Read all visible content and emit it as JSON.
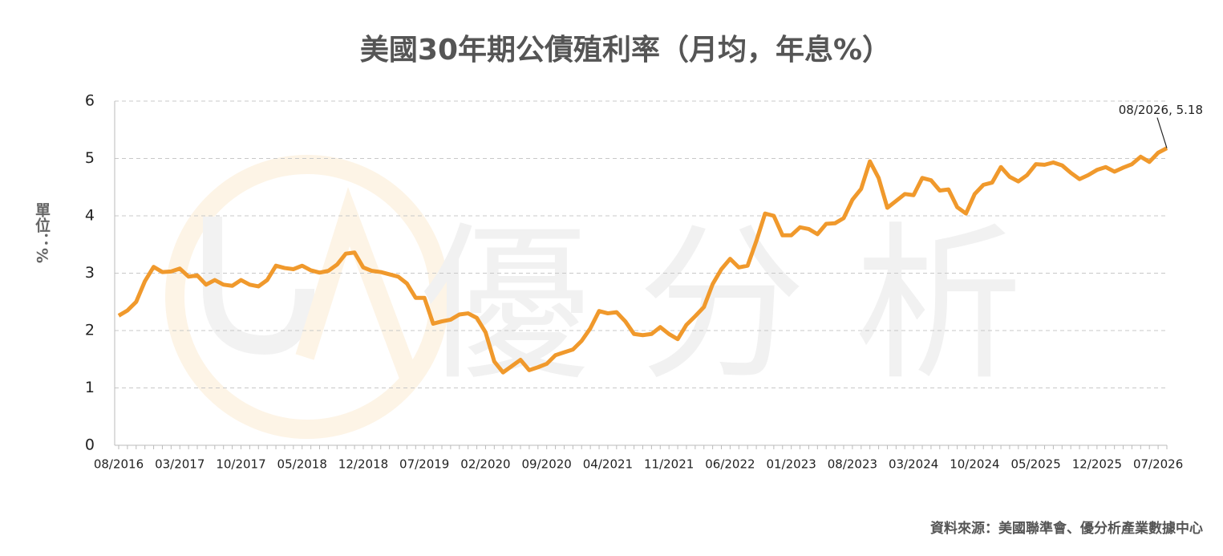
{
  "chart_data": {
    "type": "line",
    "title": "美國30年期公債殖利率（月均，年息%）",
    "ylabel": "單位：%",
    "source": "資料來源：美國聯準會、優分析產業數據中心",
    "watermark": "優分析",
    "categories": [
      "08/2016",
      null,
      null,
      null,
      null,
      null,
      null,
      "03/2017",
      null,
      null,
      null,
      null,
      null,
      null,
      "10/2017",
      null,
      null,
      null,
      null,
      null,
      null,
      "05/2018",
      null,
      null,
      null,
      null,
      null,
      null,
      "12/2018",
      null,
      null,
      null,
      null,
      null,
      null,
      "07/2019",
      null,
      null,
      null,
      null,
      null,
      null,
      "02/2020",
      null,
      null,
      null,
      null,
      null,
      null,
      "09/2020",
      null,
      null,
      null,
      null,
      null,
      null,
      "04/2021",
      null,
      null,
      null,
      null,
      null,
      null,
      "11/2021",
      null,
      null,
      null,
      null,
      null,
      null,
      "06/2022",
      null,
      null,
      null,
      null,
      null,
      null,
      "01/2023",
      null,
      null,
      null,
      null,
      null,
      null,
      "08/2023",
      null,
      null,
      null,
      null,
      null,
      null,
      "03/2024",
      null,
      null,
      null,
      null,
      null,
      null,
      "10/2024",
      null,
      null,
      null,
      null,
      null,
      null,
      "05/2025",
      null,
      null,
      null,
      null,
      null,
      null,
      "12/2025",
      null,
      null,
      null,
      null,
      null,
      null,
      "07/2026",
      null
    ],
    "values": [
      2.26,
      2.35,
      2.5,
      2.86,
      3.11,
      3.02,
      3.03,
      3.08,
      2.94,
      2.96,
      2.8,
      2.88,
      2.8,
      2.78,
      2.88,
      2.8,
      2.77,
      2.88,
      3.13,
      3.09,
      3.07,
      3.13,
      3.05,
      3.01,
      3.04,
      3.15,
      3.34,
      3.36,
      3.1,
      3.04,
      3.02,
      2.98,
      2.94,
      2.82,
      2.57,
      2.57,
      2.12,
      2.16,
      2.19,
      2.28,
      2.3,
      2.22,
      1.97,
      1.46,
      1.27,
      1.38,
      1.49,
      1.31,
      1.36,
      1.42,
      1.57,
      1.62,
      1.67,
      1.82,
      2.04,
      2.34,
      2.3,
      2.32,
      2.16,
      1.94,
      1.92,
      1.94,
      2.06,
      1.94,
      1.85,
      2.1,
      2.25,
      2.41,
      2.81,
      3.07,
      3.25,
      3.1,
      3.13,
      3.56,
      4.04,
      4.0,
      3.66,
      3.66,
      3.8,
      3.77,
      3.68,
      3.86,
      3.87,
      3.96,
      4.28,
      4.47,
      4.95,
      4.66,
      4.14,
      4.26,
      4.38,
      4.36,
      4.66,
      4.62,
      4.44,
      4.46,
      4.15,
      4.04,
      4.38,
      4.54,
      4.58,
      4.85,
      4.68,
      4.6,
      4.71,
      4.9,
      4.89,
      4.93,
      4.88,
      4.75,
      4.64,
      4.71,
      4.8,
      4.85,
      4.77,
      4.84,
      4.9,
      5.03,
      4.94,
      5.1,
      5.18
    ],
    "color": "#f0992c",
    "ylim": [
      0,
      6
    ],
    "yticks": [
      0,
      1,
      2,
      3,
      4,
      5,
      6
    ],
    "grid": true,
    "annotations": [
      {
        "text": "08/2026, 5.18"
      }
    ]
  }
}
